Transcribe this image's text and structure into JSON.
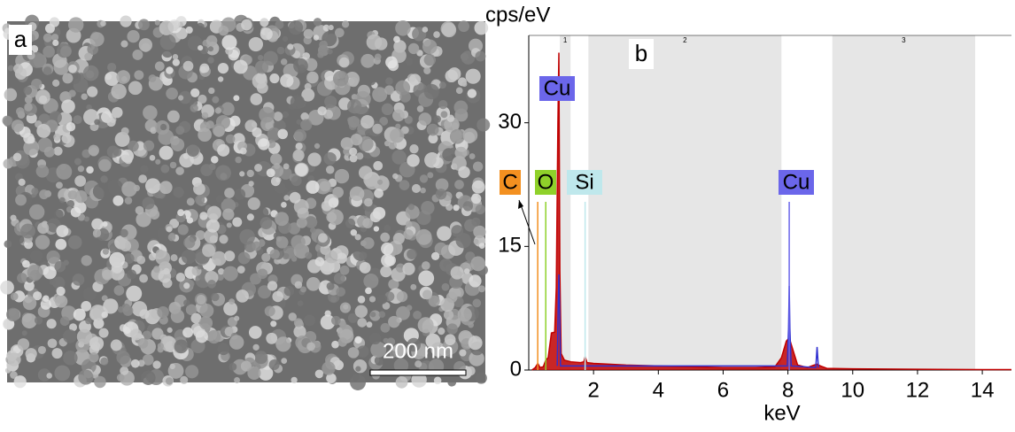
{
  "panel_a": {
    "label": "a",
    "scale_bar": "200 nm"
  },
  "chart_data": {
    "type": "spectrum",
    "panel_label": "b",
    "ylabel": "cps/eV",
    "xlabel": "keV",
    "xlim": [
      0,
      14.9
    ],
    "ylim": [
      0,
      40.6
    ],
    "xticks": [
      2,
      4,
      6,
      8,
      10,
      12,
      14
    ],
    "yticks": [
      0,
      15,
      30
    ],
    "regions": [
      {
        "label": "1",
        "range": [
          0.96,
          1.29
        ]
      },
      {
        "label": "2",
        "range": [
          1.84,
          7.8
        ]
      },
      {
        "label": "3",
        "range": [
          9.37,
          13.78
        ]
      }
    ],
    "series": [
      {
        "color": "#c00000",
        "x": [
          0.1,
          0.2,
          0.28,
          0.35,
          0.45,
          0.525,
          0.6,
          0.7,
          0.8,
          0.85,
          0.9,
          0.93,
          0.96,
          1.0,
          1.1,
          1.3,
          1.6,
          1.7,
          1.74,
          1.8,
          2.0,
          3,
          4,
          5,
          6,
          7,
          7.6,
          7.8,
          7.95,
          8.04,
          8.15,
          8.3,
          8.6,
          8.8,
          8.9,
          9.0,
          9.2,
          10,
          12,
          14,
          14.9
        ],
        "values": [
          0,
          0.3,
          0.8,
          0.3,
          0.4,
          1.2,
          1.5,
          4.5,
          4.6,
          10,
          30,
          38.5,
          12,
          2,
          1.2,
          1.0,
          0.9,
          1.0,
          1.6,
          0.9,
          0.8,
          0.6,
          0.5,
          0.4,
          0.3,
          0.3,
          0.4,
          1.5,
          3.5,
          3.9,
          2.5,
          0.6,
          0.3,
          0.6,
          0.7,
          0.5,
          0.2,
          0.15,
          0.1,
          0.05,
          0.05
        ]
      },
      {
        "color": "#3030d0",
        "x": [
          0.88,
          0.91,
          0.93,
          0.95,
          0.98,
          7.98,
          8.02,
          8.04,
          8.06,
          8.1,
          8.86,
          8.9,
          8.94
        ],
        "values": [
          0.5,
          8,
          11.6,
          8,
          0.5,
          0.5,
          5,
          10.2,
          5,
          0.5,
          0.3,
          2.8,
          0.3
        ]
      }
    ],
    "annotations": [
      {
        "label": "C",
        "x": 0.277,
        "color": "#f39020"
      },
      {
        "label": "O",
        "x": 0.525,
        "color": "#8fd12a"
      },
      {
        "label": "Cu",
        "x": 0.93,
        "color": "#6b66ea"
      },
      {
        "label": "Si",
        "x": 1.74,
        "color": "#bfe8ec"
      },
      {
        "label": "Cu",
        "x": 8.04,
        "color": "#6b66ea"
      }
    ]
  }
}
